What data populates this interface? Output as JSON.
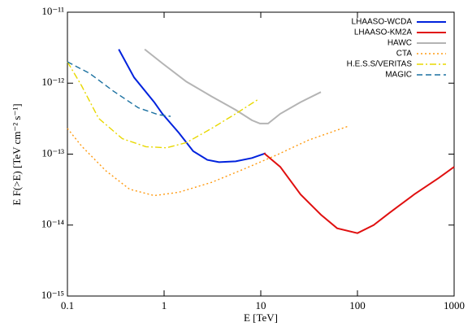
{
  "chart_data": {
    "type": "line",
    "log_x": true,
    "log_y": true,
    "xlabel": "E [TeV]",
    "ylabel": "E F(>E) [TeV cm⁻² s⁻¹]",
    "xlim": [
      0.1,
      1000
    ],
    "ylim": [
      1e-15,
      1e-11
    ],
    "xticks": [
      0.1,
      1,
      10,
      100,
      1000
    ],
    "yticks": [
      {
        "value": 1e-15,
        "label": "10⁻¹⁵"
      },
      {
        "value": 1e-14,
        "label": "10⁻¹⁴"
      },
      {
        "value": 1e-13,
        "label": "10⁻¹³"
      },
      {
        "value": 1e-12,
        "label": "10⁻¹²"
      },
      {
        "value": 1e-11,
        "label": "10⁻¹¹"
      }
    ],
    "legend": "upper right",
    "series": [
      {
        "name": "LHAASO-WCDA",
        "color": "#0022dd",
        "style": "solid",
        "x": [
          0.34,
          0.49,
          0.79,
          0.96,
          1.42,
          2.0,
          2.8,
          3.7,
          5.5,
          8.1,
          11.2
        ],
        "values": [
          3e-12,
          1.2e-12,
          5.4e-13,
          3.7e-13,
          2e-13,
          1.1e-13,
          8.3e-14,
          7.7e-14,
          7.9e-14,
          8.8e-14,
          1.03e-13
        ]
      },
      {
        "name": "LHAASO-KM2A",
        "color": "#e01010",
        "style": "solid",
        "x": [
          10.8,
          15.9,
          25.8,
          41.9,
          61.7,
          100,
          147,
          216,
          386,
          691,
          1000
        ],
        "values": [
          1.03e-13,
          6.6e-14,
          2.7e-14,
          1.4e-14,
          9e-15,
          7.7e-15,
          1e-14,
          1.5e-14,
          2.7e-14,
          4.6e-14,
          6.6e-14
        ]
      },
      {
        "name": "HAWC",
        "color": "#b4b4b4",
        "style": "solid",
        "x": [
          0.63,
          0.96,
          1.7,
          3.1,
          5.5,
          8.1,
          9.8,
          11.9,
          15.9,
          25.8,
          41.9
        ],
        "values": [
          3e-12,
          1.9e-12,
          1.05e-12,
          6.5e-13,
          4.2e-13,
          3e-13,
          2.7e-13,
          2.7e-13,
          3.7e-13,
          5.4e-13,
          7.5e-13
        ]
      },
      {
        "name": "CTA",
        "color": "#ff9a10",
        "style": "dotted",
        "x": [
          0.1,
          0.14,
          0.25,
          0.44,
          0.79,
          1.42,
          3.1,
          6.6,
          14.5,
          31,
          81.9
        ],
        "values": [
          2.3e-13,
          1.3e-13,
          5.8e-14,
          3.2e-14,
          2.6e-14,
          2.9e-14,
          4e-14,
          6.1e-14,
          9.7e-14,
          1.57e-13,
          2.5e-13
        ]
      },
      {
        "name": "H.E.S.S/VERITAS",
        "color": "#e8d800",
        "style": "dashdot",
        "x": [
          0.1,
          0.14,
          0.21,
          0.37,
          0.65,
          1.06,
          1.7,
          3.1,
          5.5,
          9.4
        ],
        "values": [
          2e-12,
          9.2e-13,
          3.2e-13,
          1.65e-13,
          1.27e-13,
          1.23e-13,
          1.45e-13,
          2.3e-13,
          3.7e-13,
          5.9e-13
        ]
      },
      {
        "name": "MAGIC",
        "color": "#1a70a0",
        "style": "dashed",
        "x": [
          0.1,
          0.17,
          0.3,
          0.54,
          0.87,
          1.17
        ],
        "values": [
          2e-12,
          1.37e-12,
          7.7e-13,
          4.5e-13,
          3.6e-13,
          3.4e-13
        ]
      }
    ]
  }
}
